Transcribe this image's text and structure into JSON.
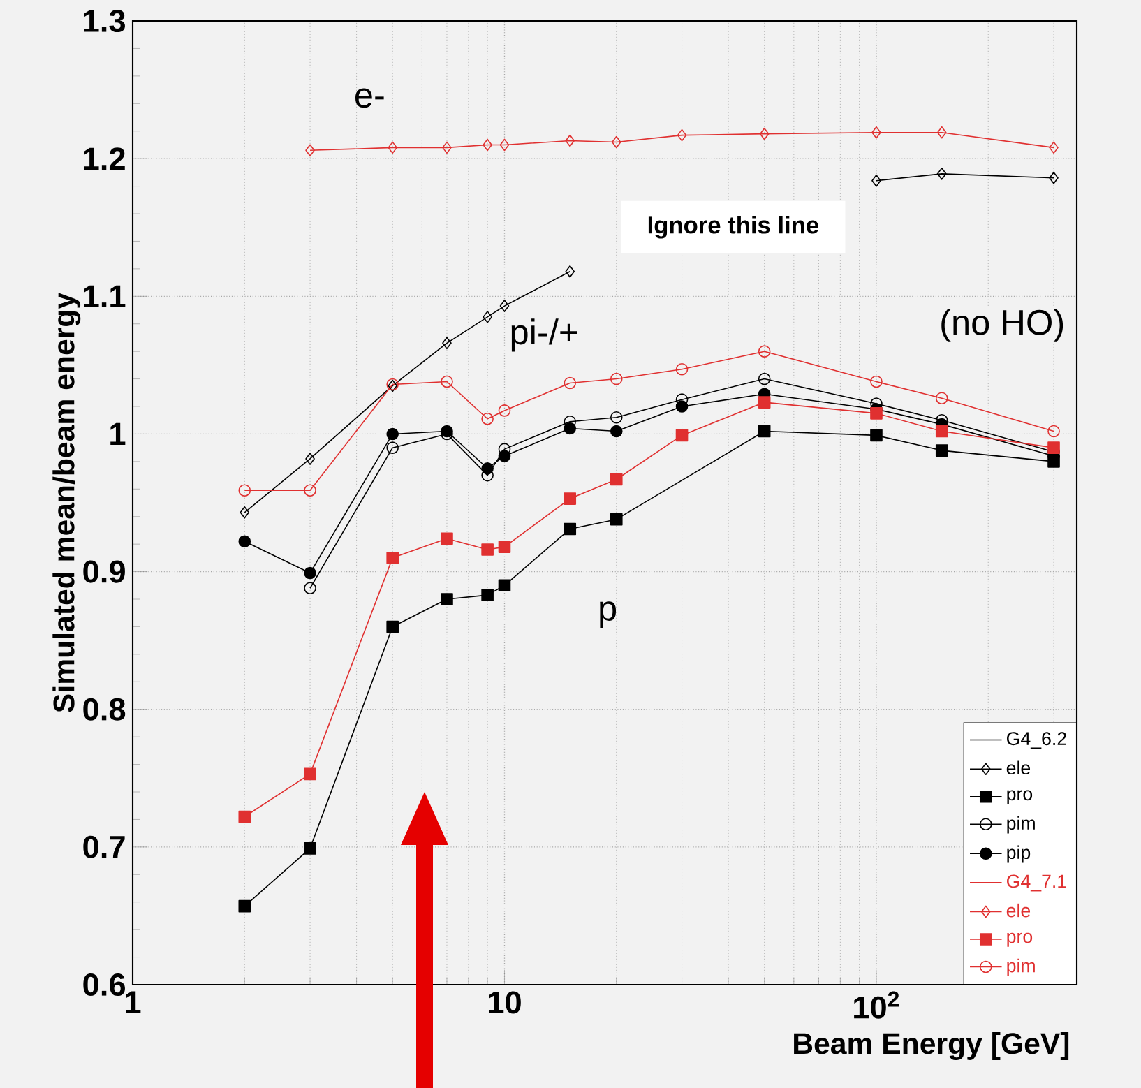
{
  "chart_data": {
    "type": "line",
    "xlabel": "Beam Energy [GeV]",
    "ylabel": "Simulated mean/beam energy",
    "log": "x",
    "grid": true,
    "legend": "bottom right",
    "line_style": "solid",
    "x": [
      2,
      3,
      5,
      7,
      9,
      10,
      15,
      20,
      30,
      50,
      100,
      150,
      300
    ],
    "xlim": [
      1,
      346
    ],
    "xticks": [
      1,
      10,
      {
        "value": 100,
        "label": "10$^{2}$"
      }
    ],
    "ylim": [
      0.6,
      1.3
    ],
    "yticks": [
      0.6,
      0.7,
      0.8,
      0.9,
      1,
      1.1,
      1.2,
      1.3
    ],
    "series": [
      {
        "name": "ele",
        "color": "#000000",
        "marker": "diamond",
        "values": [
          0.943,
          0.982,
          1.035,
          1.066,
          1.085,
          1.093,
          1.118,
          null,
          null,
          null,
          1.184,
          1.189,
          1.186
        ]
      },
      {
        "name": "pro",
        "color": "#000000",
        "marker": "square",
        "x": [
          2,
          3,
          5,
          7,
          9,
          10,
          15,
          20,
          50,
          100,
          150,
          300
        ],
        "values": [
          0.657,
          0.699,
          0.86,
          0.88,
          0.883,
          0.89,
          0.931,
          0.938,
          1.002,
          0.999,
          0.988,
          0.98
        ]
      },
      {
        "name": "pim",
        "color": "#000000",
        "marker": "circle",
        "values": [
          null,
          0.888,
          0.99,
          1.0,
          0.97,
          0.989,
          1.009,
          1.012,
          1.025,
          1.04,
          1.022,
          1.01,
          0.987
        ]
      },
      {
        "name": "pip",
        "color": "#000000",
        "marker": "circle",
        "values": [
          0.922,
          0.899,
          1.0,
          1.002,
          0.975,
          0.984,
          1.004,
          1.002,
          1.02,
          1.029,
          1.018,
          1.007,
          0.984
        ]
      },
      {
        "name": "ele",
        "color": "#e03030",
        "marker": "diamond",
        "x": [
          3,
          5,
          7,
          9,
          10,
          15,
          20,
          30,
          50,
          100,
          150,
          300
        ],
        "values": [
          1.206,
          1.208,
          1.208,
          1.21,
          1.21,
          1.213,
          1.212,
          1.217,
          1.218,
          1.219,
          1.219,
          1.208
        ]
      },
      {
        "name": "pro",
        "color": "#e03030",
        "marker": "square",
        "values": [
          0.722,
          0.753,
          0.91,
          0.924,
          0.916,
          0.918,
          0.953,
          0.967,
          0.999,
          1.023,
          1.015,
          1.002,
          0.99
        ]
      },
      {
        "name": "pim",
        "color": "#e03030",
        "marker": "circle",
        "values": [
          0.959,
          0.959,
          1.036,
          1.038,
          1.011,
          1.017,
          1.037,
          1.04,
          1.047,
          1.06,
          1.038,
          1.026,
          1.002
        ]
      }
    ],
    "annotations": [
      "e-",
      "pi-/+",
      "p",
      "Ignore this line",
      "(no HO)",
      "G4_6.2",
      "G4_7.1"
    ]
  }
}
